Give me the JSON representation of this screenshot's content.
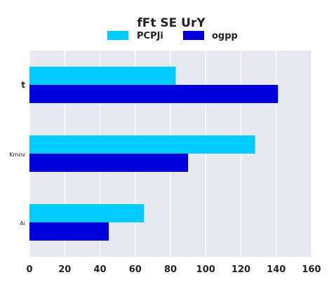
{
  "chart_data": {
    "type": "bar",
    "orientation": "horizontal",
    "title": "fFt SE UrY",
    "categories": [
      "t",
      "Kmov",
      "Ai"
    ],
    "series": [
      {
        "name": "PCPJi",
        "values": [
          83,
          128,
          65
        ],
        "color": "#00ccff"
      },
      {
        "name": "ogpp",
        "values": [
          141,
          90,
          45
        ],
        "color": "#0000dd"
      }
    ],
    "xlim": [
      0,
      160
    ],
    "xticks": [
      0,
      20,
      40,
      60,
      80,
      100,
      120,
      140,
      160
    ],
    "xlabel": "",
    "ylabel": "",
    "grid": true,
    "legend": "top-center",
    "background": "#e8e8f0"
  }
}
